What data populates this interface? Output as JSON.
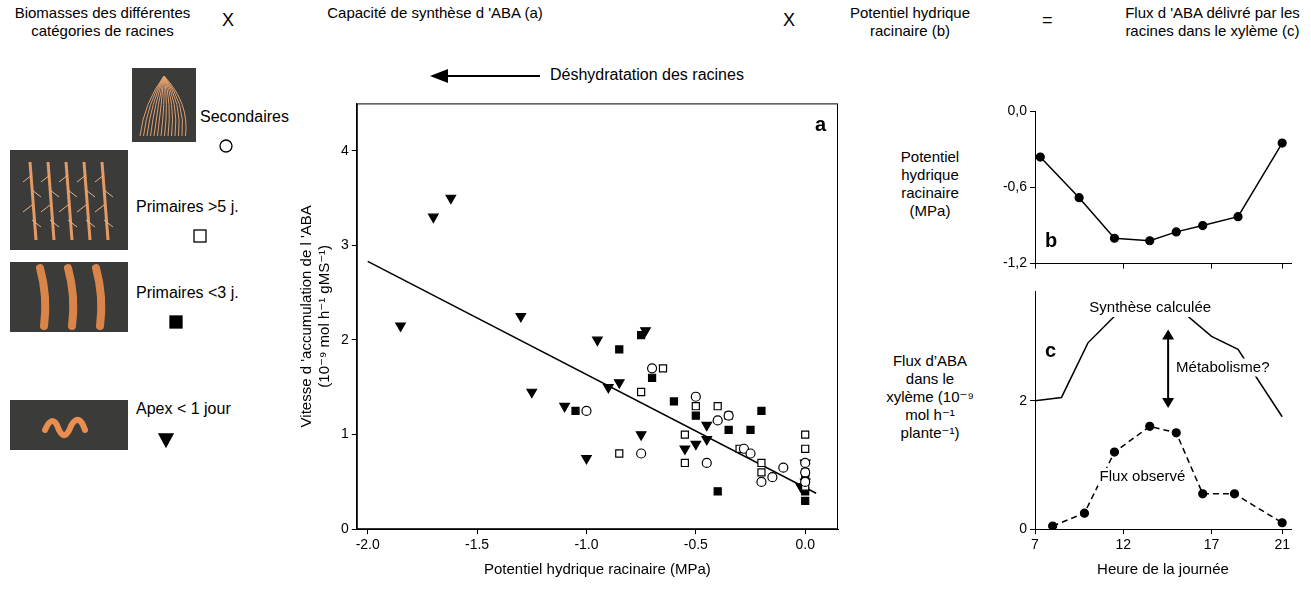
{
  "header": [
    "Biomasses des différentes catégories de racines",
    "Capacité de synthèse d 'ABA (a)",
    "Potentiel hydrique racinaire (b)",
    "Flux d 'ABA délivré par les racines dans le xylème (c)"
  ],
  "operators": [
    "X",
    "X",
    "="
  ],
  "chart_data": [
    {
      "type": "scatter",
      "panel": "a",
      "annotation": "Déshydratation des racines",
      "x_label": "Potentiel hydrique racinaire (MPa)",
      "y_label": "Vitesse d 'accumulation de l 'ABA (10⁻⁹ mol h⁻¹ gMS⁻¹)",
      "xlim": [
        -2.05,
        0.15
      ],
      "xticks": [
        {
          "value": -2,
          "label": "-2.0"
        },
        {
          "value": -1.5,
          "label": "-1.5"
        },
        {
          "value": -1,
          "label": "-1.0"
        },
        {
          "value": -0.5,
          "label": "-0.5"
        },
        {
          "value": 0,
          "label": "0.0"
        }
      ],
      "ylim": [
        0,
        4.5
      ],
      "yticks": [
        0,
        1,
        2,
        3,
        4
      ],
      "grid": false,
      "legend": "left",
      "series": [
        {
          "name": "Secondaires",
          "color": "#000000",
          "marker": "circle",
          "x": [
            -1.0,
            -0.75,
            -0.7,
            -0.5,
            -0.45,
            -0.4,
            -0.35,
            -0.28,
            -0.25,
            -0.2,
            -0.15,
            -0.1,
            0,
            0,
            0
          ],
          "values": [
            1.25,
            0.8,
            1.7,
            1.4,
            0.7,
            1.15,
            1.2,
            0.85,
            0.8,
            0.5,
            0.55,
            0.65,
            0.6,
            0.5,
            0.7
          ]
        },
        {
          "name": "Primaires >5 j.",
          "color": "#000000",
          "marker": "square",
          "x": [
            -0.85,
            -0.75,
            -0.65,
            -0.55,
            -0.55,
            -0.5,
            -0.4,
            -0.35,
            -0.3,
            -0.2,
            -0.2,
            0,
            0,
            0,
            0
          ],
          "values": [
            0.8,
            1.45,
            1.7,
            1.0,
            0.7,
            1.3,
            1.3,
            1.2,
            0.85,
            0.7,
            0.6,
            1.0,
            0.85,
            0.6,
            0.45
          ]
        },
        {
          "name": "Primaires <3 j.",
          "color": "#000000",
          "marker": "square_filled",
          "x": [
            -1.05,
            -0.85,
            -0.75,
            -0.7,
            -0.6,
            -0.5,
            -0.4,
            -0.35,
            -0.25,
            -0.2,
            0,
            0,
            0
          ],
          "values": [
            1.25,
            1.9,
            2.05,
            1.6,
            1.35,
            1.2,
            0.4,
            1.05,
            1.05,
            1.25,
            0.3,
            0.4,
            0.55
          ]
        },
        {
          "name": "Apex < 1 jour",
          "color": "#000000",
          "marker": "triangle_down",
          "x": [
            -1.85,
            -1.7,
            -1.62,
            -1.3,
            -1.25,
            -1.1,
            -1.0,
            -0.95,
            -0.9,
            -0.85,
            -0.75,
            -0.73,
            -0.55,
            -0.5,
            -0.45,
            -0.45,
            -0.02,
            0,
            0
          ],
          "values": [
            2.15,
            3.3,
            3.5,
            2.25,
            1.45,
            1.3,
            0.75,
            2.0,
            1.5,
            1.55,
            1.0,
            2.1,
            0.85,
            0.9,
            1.1,
            0.95,
            0.45,
            0.5,
            0.7
          ]
        },
        {
          "type": "line",
          "color": "#000000",
          "marker": "none",
          "line_style": "solid",
          "x": [
            -2.0,
            0.05
          ],
          "values": [
            2.83,
            0.38
          ]
        }
      ]
    },
    {
      "type": "line",
      "panel": "b",
      "y_label": "Potentiel hydrique racinaire (MPa)",
      "xlim": [
        7,
        21.5
      ],
      "xticks": [
        7,
        12,
        17,
        21
      ],
      "tick_labels": "y",
      "ylim": [
        -1.2,
        0
      ],
      "yticks": [
        {
          "value": 0,
          "label": "0,0"
        },
        {
          "value": -0.6,
          "label": "-0,6"
        },
        {
          "value": -1.2,
          "label": "-1,2"
        }
      ],
      "grid": false,
      "series": [
        {
          "color": "#000000",
          "marker": "circle_filled",
          "line_style": "solid",
          "x": [
            7.3,
            9.5,
            11.5,
            13.5,
            15,
            16.5,
            18.5,
            21
          ],
          "values": [
            -0.36,
            -0.68,
            -1.0,
            -1.02,
            -0.95,
            -0.9,
            -0.83,
            -0.25
          ]
        }
      ]
    },
    {
      "type": "line",
      "panel": "c",
      "y_label": "Flux d’ABA dans le xylème (10⁻⁹ mol h⁻¹ plante⁻¹)",
      "x_label": "Heure de la journée",
      "annotation": "Métabolisme?",
      "xlim": [
        7,
        21.5
      ],
      "xticks": [
        7,
        12,
        17,
        21
      ],
      "ylim": [
        0,
        3.7
      ],
      "yticks": [
        0,
        2
      ],
      "grid": false,
      "series": [
        {
          "name": "Synthèse calculée",
          "color": "#000000",
          "marker": "none",
          "line_style": "solid",
          "x": [
            7,
            8.5,
            10,
            12,
            14,
            15.5,
            17,
            18.5,
            21
          ],
          "values": [
            2.0,
            2.05,
            2.9,
            3.45,
            3.55,
            3.35,
            3.0,
            2.8,
            1.75
          ]
        },
        {
          "name": "Flux observé",
          "color": "#000000",
          "marker": "circle_filled",
          "line_style": "dashed",
          "x": [
            8,
            9.8,
            11.5,
            13.5,
            15,
            16.5,
            18.3,
            21
          ],
          "values": [
            0.05,
            0.25,
            1.2,
            1.6,
            1.5,
            0.55,
            0.55,
            0.1
          ]
        }
      ]
    }
  ]
}
